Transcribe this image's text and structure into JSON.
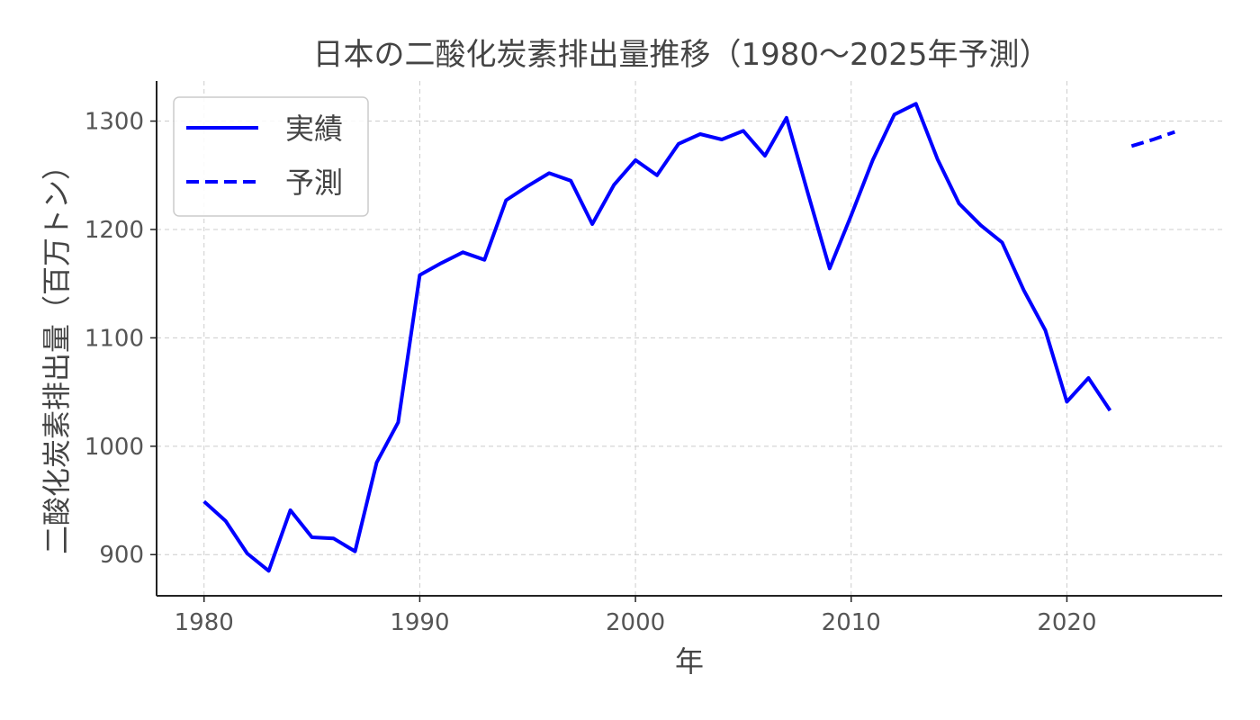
{
  "chart_data": {
    "type": "line",
    "title": "日本の二酸化炭素排出量推移（1980〜2025年予測）",
    "xlabel": "年",
    "ylabel": "二酸化炭素排出量（百万トン）",
    "xlim": [
      1977.8,
      2027.2
    ],
    "ylim": [
      862,
      1337
    ],
    "xticks": [
      1980,
      1990,
      2000,
      2010,
      2020
    ],
    "yticks": [
      900,
      1000,
      1100,
      1200,
      1300
    ],
    "grid": true,
    "legend_position": "top-left",
    "series": [
      {
        "name": "実績",
        "style": "solid",
        "color": "#0000ff",
        "x": [
          1980,
          1981,
          1982,
          1983,
          1984,
          1985,
          1986,
          1987,
          1988,
          1989,
          1990,
          1991,
          1992,
          1993,
          1994,
          1995,
          1996,
          1997,
          1998,
          1999,
          2000,
          2001,
          2002,
          2003,
          2004,
          2005,
          2006,
          2007,
          2008,
          2009,
          2010,
          2011,
          2012,
          2013,
          2014,
          2015,
          2016,
          2017,
          2018,
          2019,
          2020,
          2021,
          2022
        ],
        "y": [
          949,
          931,
          901,
          885,
          941,
          916,
          915,
          903,
          985,
          1022,
          1158,
          1169,
          1179,
          1172,
          1227,
          1240,
          1252,
          1245,
          1205,
          1241,
          1264,
          1250,
          1279,
          1288,
          1283,
          1291,
          1268,
          1303,
          1233,
          1164,
          1213,
          1264,
          1306,
          1316,
          1265,
          1224,
          1204,
          1188,
          1144,
          1107,
          1041,
          1063,
          1033
        ]
      },
      {
        "name": "予測",
        "style": "dashed",
        "color": "#0000ff",
        "x": [
          2023,
          2024,
          2025
        ],
        "y": [
          1277,
          1283,
          1290
        ]
      }
    ]
  }
}
